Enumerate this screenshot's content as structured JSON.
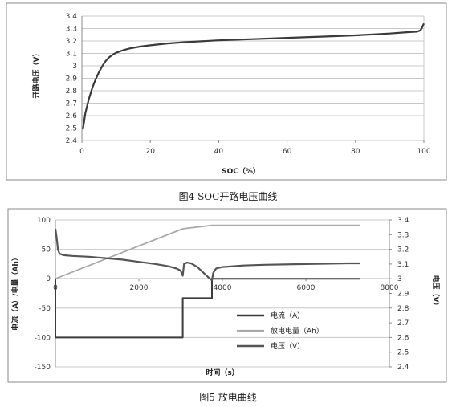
{
  "chart_data": [
    {
      "type": "line",
      "caption": "图4 SOC开路电压曲线",
      "xlabel": "SOC（%）",
      "ylabel": "开路电压（V）",
      "xlim": [
        0,
        100
      ],
      "ylim": [
        2.4,
        3.4
      ],
      "x_ticks": [
        "0",
        "20",
        "40",
        "60",
        "80",
        "100"
      ],
      "y_ticks": [
        "2.4",
        "2.5",
        "2.6",
        "2.7",
        "2.8",
        "2.9",
        "3",
        "3.1",
        "3.2",
        "3.3",
        "3.4"
      ],
      "grid": true,
      "series": [
        {
          "x": [
            0.3,
            1,
            2,
            3,
            4,
            5,
            6,
            7,
            8,
            9,
            10,
            12,
            14,
            17,
            20,
            25,
            30,
            40,
            50,
            60,
            70,
            80,
            90,
            95,
            98,
            99,
            99.5,
            100
          ],
          "y": [
            2.49,
            2.62,
            2.73,
            2.82,
            2.89,
            2.95,
            3.0,
            3.04,
            3.07,
            3.09,
            3.105,
            3.125,
            3.14,
            3.155,
            3.165,
            3.18,
            3.19,
            3.205,
            3.215,
            3.225,
            3.235,
            3.245,
            3.26,
            3.27,
            3.275,
            3.285,
            3.31,
            3.34
          ],
          "color": "#3a3a3a"
        }
      ]
    },
    {
      "type": "line",
      "caption": "图5 放电曲线",
      "xlabel": "时间（s）",
      "ylabel": "电流（A）/电量（Ah）",
      "ylabel_right": "电压（V）",
      "xlim": [
        0,
        8000
      ],
      "ylim": [
        -150,
        100
      ],
      "ylim_right": [
        2.4,
        3.4
      ],
      "x_ticks": [
        "0",
        "2000",
        "4000",
        "6000",
        "8000"
      ],
      "y_ticks": [
        "-150",
        "-100",
        "-50",
        "0",
        "50",
        "100"
      ],
      "y_ticks_right": [
        "2.4",
        "2.5",
        "2.6",
        "2.7",
        "2.8",
        "2.9",
        "3",
        "3.1",
        "3.2",
        "3.3",
        "3.4"
      ],
      "grid": true,
      "legend_position": "right",
      "series": [
        {
          "name": "电流（A）",
          "axis": "left",
          "color": "#3b3b3b",
          "x": [
            0,
            0,
            3050,
            3050,
            3750,
            3750,
            7300
          ],
          "y": [
            0,
            -100,
            -100,
            -33,
            -33,
            0,
            0
          ]
        },
        {
          "name": "放电电量（Ah）",
          "axis": "left",
          "color": "#a9a9a9",
          "x": [
            0,
            3050,
            3750,
            7300
          ],
          "y": [
            0,
            85,
            91,
            91
          ]
        },
        {
          "name": "电压（V）",
          "axis": "right",
          "color": "#555555",
          "x": [
            0,
            30,
            60,
            100,
            200,
            400,
            800,
            1200,
            1600,
            2000,
            2400,
            2700,
            2900,
            3000,
            3050,
            3080,
            3150,
            3250,
            3400,
            3550,
            3700,
            3750,
            3780,
            3850,
            4000,
            4500,
            5000,
            6000,
            7000,
            7300
          ],
          "y": [
            3.34,
            3.28,
            3.2,
            3.17,
            3.16,
            3.155,
            3.15,
            3.14,
            3.13,
            3.115,
            3.1,
            3.085,
            3.07,
            3.055,
            3.02,
            3.1,
            3.11,
            3.105,
            3.08,
            3.04,
            3.0,
            2.99,
            3.04,
            3.07,
            3.08,
            3.09,
            3.095,
            3.1,
            3.105,
            3.105
          ]
        }
      ]
    }
  ]
}
